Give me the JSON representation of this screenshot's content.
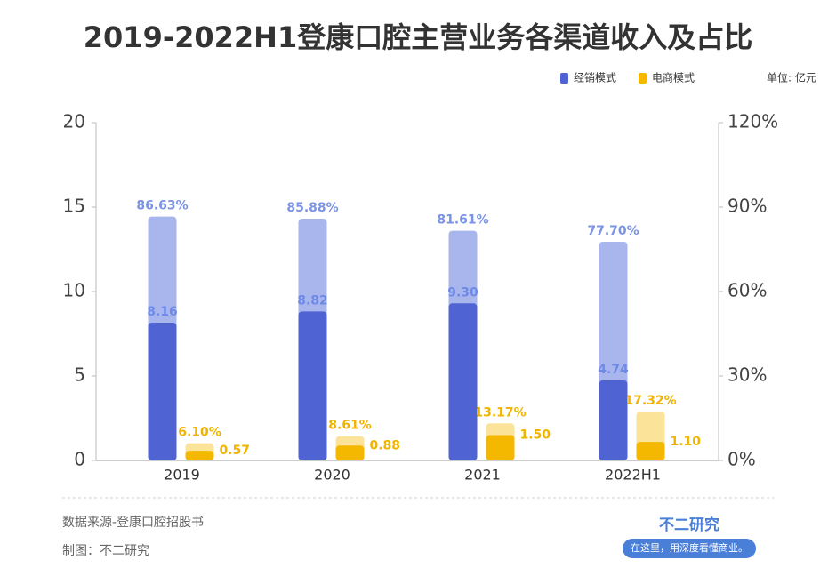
{
  "chart_data": {
    "type": "bar",
    "title": "2019-2022H1登康口腔主营业务各渠道收入及占比",
    "unit": "单位: 亿元",
    "categories": [
      "2019",
      "2020",
      "2021",
      "2022H1"
    ],
    "series": [
      {
        "name": "经销模式",
        "color": "#4f63d2",
        "values": [
          8.16,
          8.82,
          9.3,
          4.74
        ],
        "value_labels": [
          "8.16",
          "8.82",
          "9.30",
          "4.74"
        ]
      },
      {
        "name": "电商模式",
        "color": "#f5b800",
        "values": [
          0.57,
          0.88,
          1.5,
          1.1
        ],
        "value_labels": [
          "0.57",
          "0.88",
          "1.50",
          "1.10"
        ]
      },
      {
        "axis": "y2",
        "color": "#a9b6ee",
        "values": [
          86.63,
          85.88,
          81.61,
          77.7
        ],
        "value_labels": [
          "86.63%",
          "85.88%",
          "81.61%",
          "77.70%"
        ]
      },
      {
        "axis": "y2",
        "color": "#fbe39a",
        "values": [
          6.1,
          8.61,
          13.17,
          17.32
        ],
        "value_labels": [
          "6.10%",
          "8.61%",
          "13.17%",
          "17.32%"
        ]
      }
    ],
    "ylim": [
      0,
      20
    ],
    "yticks": [
      0,
      5,
      10,
      15,
      20
    ],
    "y2lim": [
      0,
      120
    ],
    "y2ticks": [
      {
        "value": 0,
        "label": "0%"
      },
      {
        "value": 30,
        "label": "30%"
      },
      {
        "value": 60,
        "label": "60%"
      },
      {
        "value": 90,
        "label": "90%"
      },
      {
        "value": 120,
        "label": "120%"
      }
    ],
    "source": "数据来源-登康口腔招股书",
    "credit": "制图：不二研究",
    "brand": "不二研究",
    "slogan": "在这里，用深度看懂商业。"
  }
}
